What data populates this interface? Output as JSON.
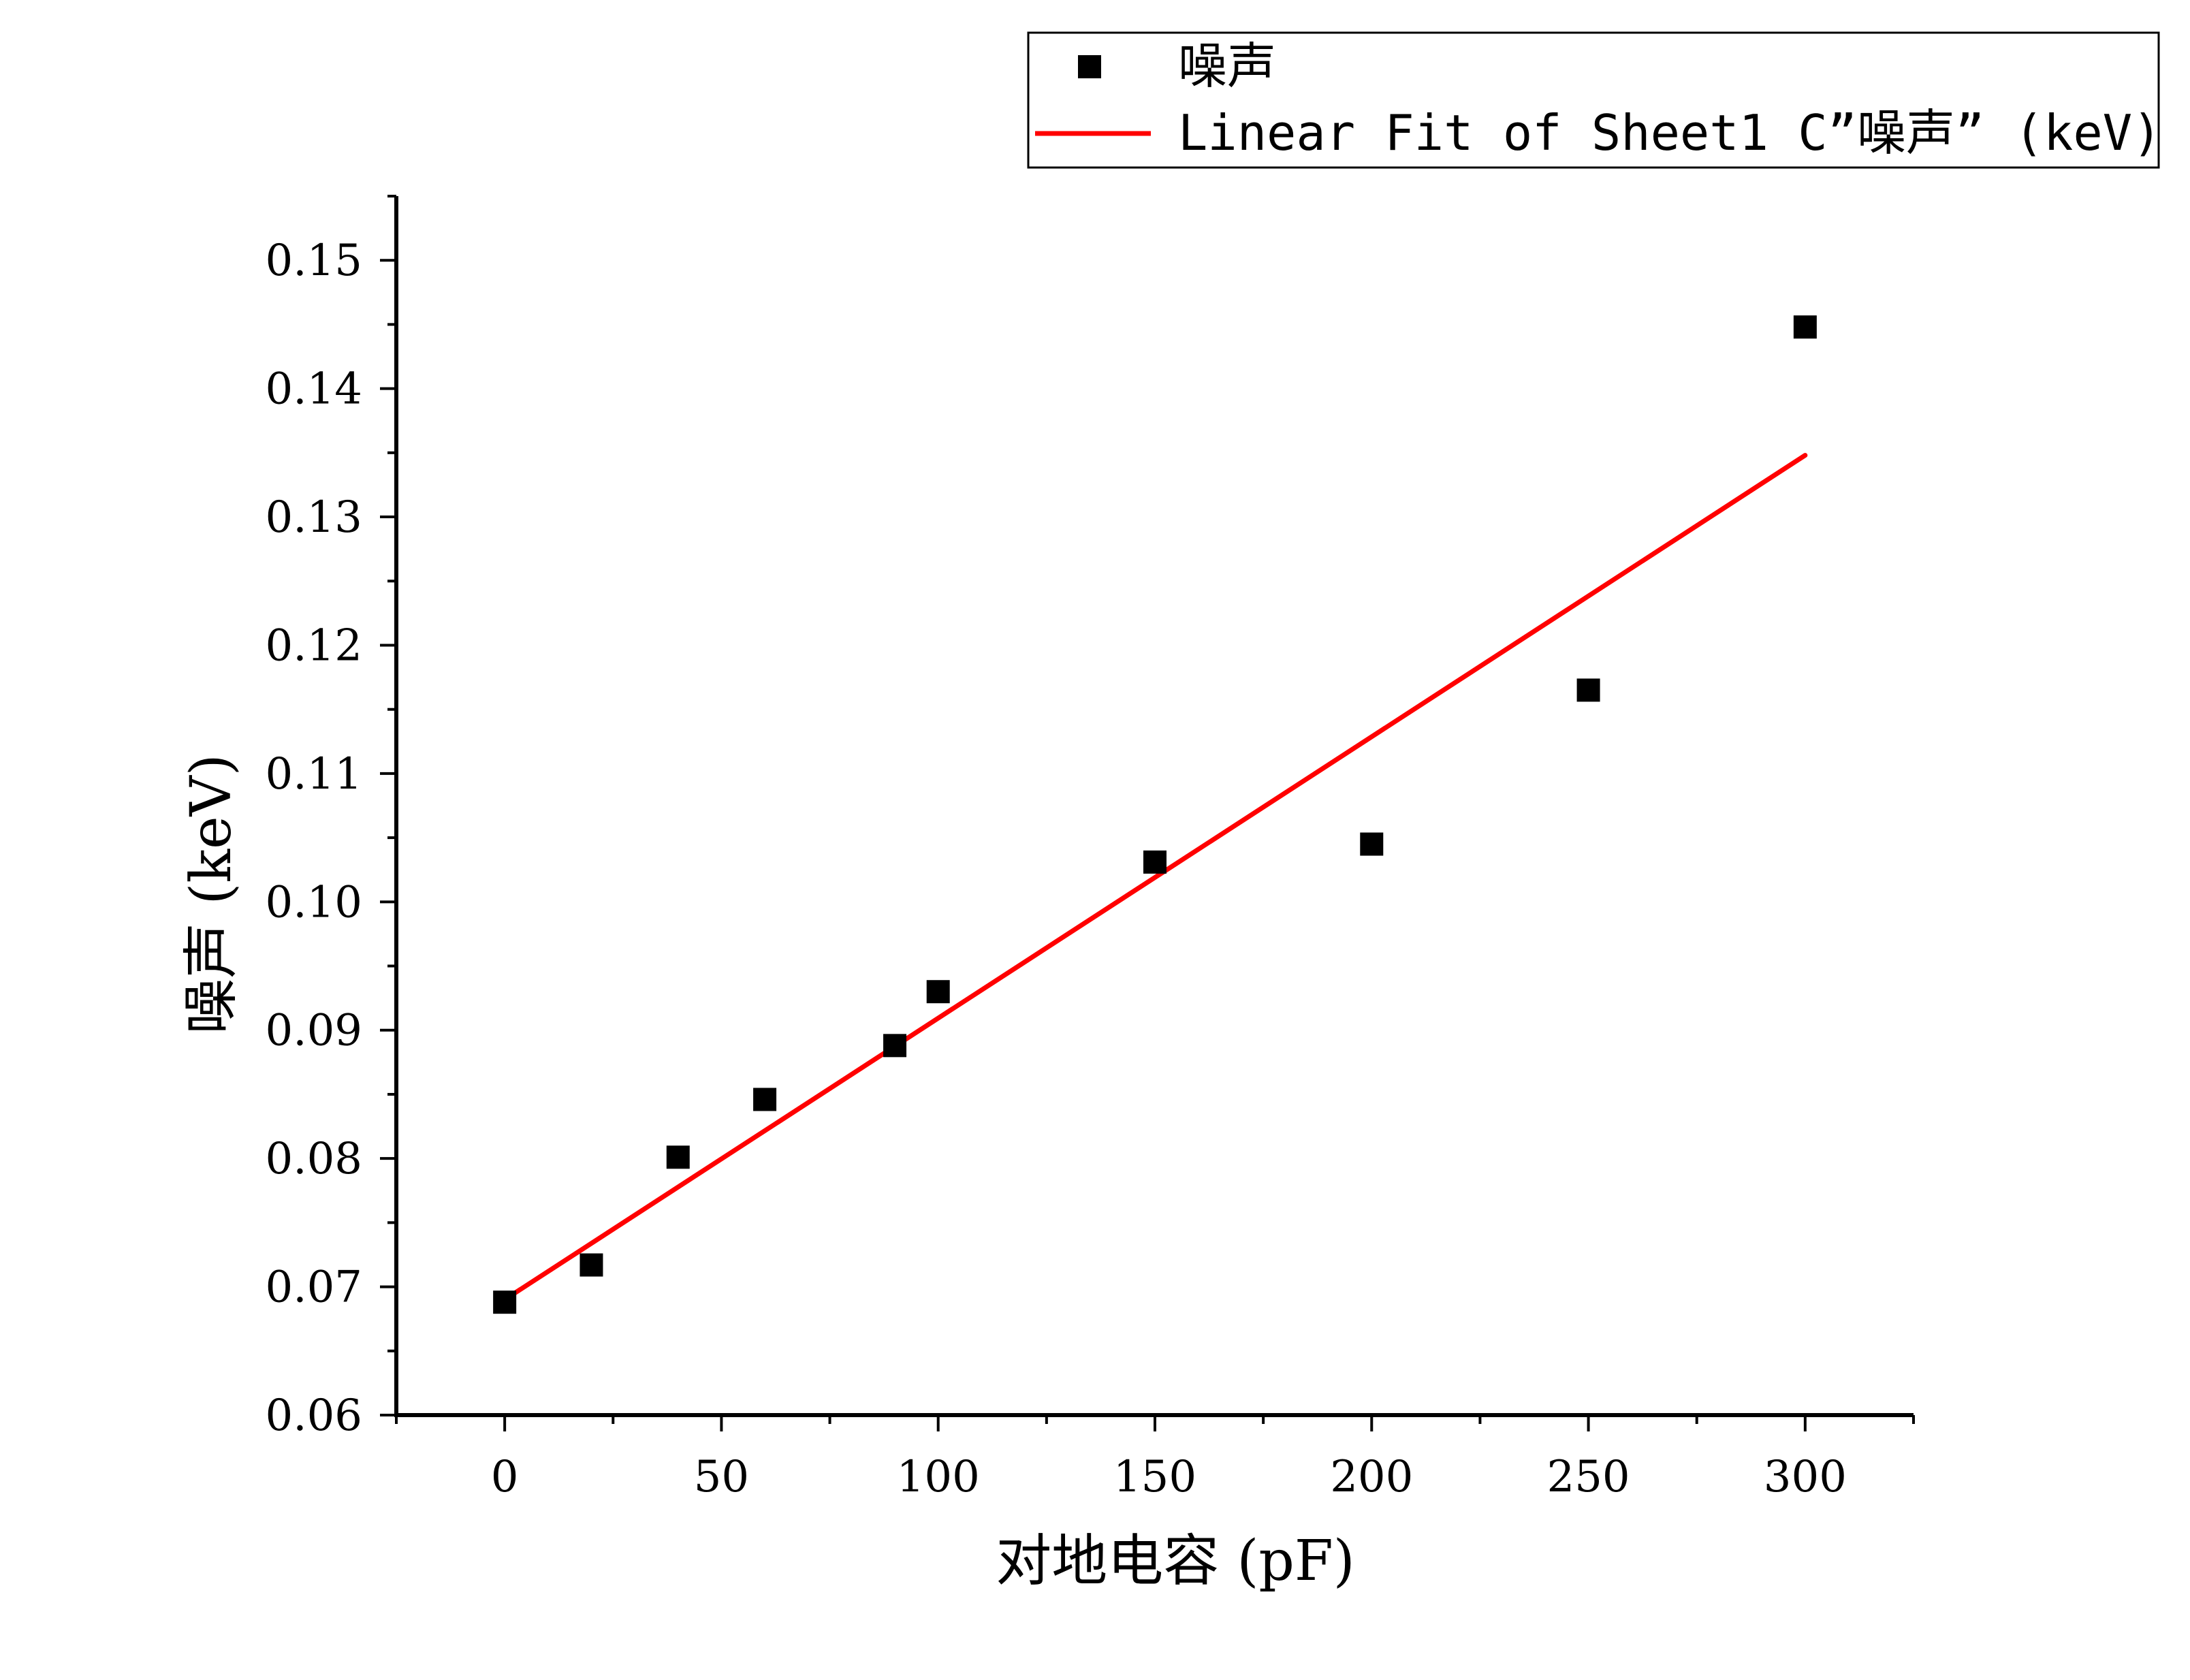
{
  "chart_data": {
    "type": "scatter",
    "title": "",
    "xlabel": "对地电容 (pF)",
    "ylabel": "噪声 (keV)",
    "xlim": [
      -25,
      325
    ],
    "ylim": [
      0.06,
      0.155
    ],
    "xticks": [
      0,
      50,
      100,
      150,
      200,
      250,
      300
    ],
    "xtick_labels": [
      "0",
      "50",
      "100",
      "150",
      "200",
      "250",
      "300"
    ],
    "yticks": [
      0.06,
      0.07,
      0.08,
      0.09,
      0.1,
      0.11,
      0.12,
      0.13,
      0.14,
      0.15
    ],
    "ytick_labels": [
      "0.06",
      "0.07",
      "0.08",
      "0.09",
      "0.10",
      "0.11",
      "0.12",
      "0.13",
      "0.14",
      "0.15"
    ],
    "series": [
      {
        "name": "噪声",
        "kind": "scatter",
        "marker": "square",
        "color": "#000000",
        "x": [
          0,
          20,
          40,
          60,
          90,
          100,
          150,
          200,
          250,
          300
        ],
        "y": [
          0.0688,
          0.0717,
          0.0801,
          0.0846,
          0.0888,
          0.093,
          0.1031,
          0.1045,
          0.1165,
          0.1448
        ]
      },
      {
        "name": "Linear Fit of Sheet1 C”噪声” (keV)",
        "kind": "line",
        "color": "#ff0000",
        "x": [
          0,
          300
        ],
        "y": [
          0.069,
          0.1348
        ]
      }
    ],
    "legend": "top-right",
    "grid": false
  }
}
